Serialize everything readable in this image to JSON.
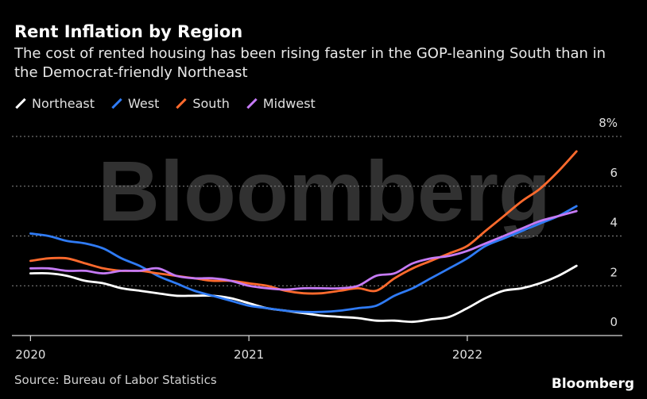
{
  "chart_data": {
    "type": "line",
    "title": "Rent Inflation by Region",
    "subtitle": "The cost of rented housing has been rising faster in the GOP-leaning South than in the Democrat-friendly Northeast",
    "source": "Source: Bureau of Labor Statistics",
    "brand": "Bloomberg",
    "watermark": "Bloomberg",
    "ylim": [
      0,
      8
    ],
    "yticks": [
      {
        "value": 0,
        "label": "0"
      },
      {
        "value": 2,
        "label": "2"
      },
      {
        "value": 4,
        "label": "4"
      },
      {
        "value": 6,
        "label": "6"
      },
      {
        "value": 8,
        "label": "8%"
      }
    ],
    "xticks": [
      {
        "value": 2020.0,
        "label": "2020"
      },
      {
        "value": 2021.0,
        "label": "2021"
      },
      {
        "value": 2022.0,
        "label": "2022"
      }
    ],
    "xlim": [
      2019.915,
      2022.71
    ],
    "grid": true,
    "legend_position": "top-left",
    "series": [
      {
        "name": "Northeast",
        "color": "#ffffff",
        "x": [
          2020.0,
          2020.083,
          2020.167,
          2020.25,
          2020.333,
          2020.417,
          2020.5,
          2020.583,
          2020.667,
          2020.75,
          2020.833,
          2020.917,
          2021.0,
          2021.083,
          2021.167,
          2021.25,
          2021.333,
          2021.417,
          2021.5,
          2021.583,
          2021.667,
          2021.75,
          2021.833,
          2021.917,
          2022.0,
          2022.083,
          2022.167,
          2022.25,
          2022.333,
          2022.417,
          2022.5
        ],
        "values": [
          2.5,
          2.5,
          2.4,
          2.2,
          2.1,
          1.9,
          1.8,
          1.7,
          1.6,
          1.6,
          1.6,
          1.5,
          1.3,
          1.1,
          1.0,
          0.9,
          0.8,
          0.75,
          0.7,
          0.6,
          0.6,
          0.55,
          0.65,
          0.75,
          1.1,
          1.5,
          1.8,
          1.9,
          2.1,
          2.4,
          2.8
        ]
      },
      {
        "name": "West",
        "color": "#2f7bf5",
        "x": [
          2020.0,
          2020.083,
          2020.167,
          2020.25,
          2020.333,
          2020.417,
          2020.5,
          2020.583,
          2020.667,
          2020.75,
          2020.833,
          2020.917,
          2021.0,
          2021.083,
          2021.167,
          2021.25,
          2021.333,
          2021.417,
          2021.5,
          2021.583,
          2021.667,
          2021.75,
          2021.833,
          2021.917,
          2022.0,
          2022.083,
          2022.167,
          2022.25,
          2022.333,
          2022.417,
          2022.5
        ],
        "values": [
          4.1,
          4.0,
          3.8,
          3.7,
          3.5,
          3.1,
          2.8,
          2.4,
          2.1,
          1.8,
          1.6,
          1.4,
          1.2,
          1.1,
          1.0,
          0.95,
          0.95,
          1.0,
          1.1,
          1.2,
          1.6,
          1.9,
          2.3,
          2.7,
          3.1,
          3.6,
          3.9,
          4.2,
          4.5,
          4.8,
          5.2
        ]
      },
      {
        "name": "South",
        "color": "#ff6a2d",
        "x": [
          2020.0,
          2020.083,
          2020.167,
          2020.25,
          2020.333,
          2020.417,
          2020.5,
          2020.583,
          2020.667,
          2020.75,
          2020.833,
          2020.917,
          2021.0,
          2021.083,
          2021.167,
          2021.25,
          2021.333,
          2021.417,
          2021.5,
          2021.583,
          2021.667,
          2021.75,
          2021.833,
          2021.917,
          2022.0,
          2022.083,
          2022.167,
          2022.25,
          2022.333,
          2022.417,
          2022.5
        ],
        "values": [
          3.0,
          3.1,
          3.1,
          2.9,
          2.7,
          2.6,
          2.6,
          2.5,
          2.4,
          2.3,
          2.2,
          2.2,
          2.1,
          2.0,
          1.8,
          1.7,
          1.7,
          1.8,
          1.9,
          1.8,
          2.3,
          2.7,
          3.0,
          3.3,
          3.6,
          4.2,
          4.8,
          5.4,
          5.9,
          6.6,
          7.4
        ]
      },
      {
        "name": "Midwest",
        "color": "#c57af5",
        "x": [
          2020.0,
          2020.083,
          2020.167,
          2020.25,
          2020.333,
          2020.417,
          2020.5,
          2020.583,
          2020.667,
          2020.75,
          2020.833,
          2020.917,
          2021.0,
          2021.083,
          2021.167,
          2021.25,
          2021.333,
          2021.417,
          2021.5,
          2021.583,
          2021.667,
          2021.75,
          2021.833,
          2021.917,
          2022.0,
          2022.083,
          2022.167,
          2022.25,
          2022.333,
          2022.417,
          2022.5
        ],
        "values": [
          2.7,
          2.7,
          2.6,
          2.6,
          2.5,
          2.6,
          2.6,
          2.7,
          2.4,
          2.3,
          2.3,
          2.2,
          2.0,
          1.9,
          1.85,
          1.9,
          1.9,
          1.9,
          2.0,
          2.4,
          2.5,
          2.9,
          3.1,
          3.2,
          3.4,
          3.7,
          4.0,
          4.3,
          4.6,
          4.8,
          5.0
        ]
      }
    ]
  }
}
